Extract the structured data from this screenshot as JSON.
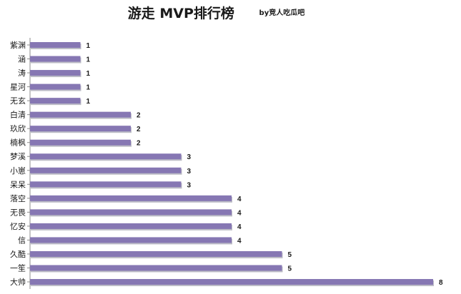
{
  "chart_data": {
    "type": "bar",
    "orientation": "horizontal",
    "title": "游走 MVP排行榜",
    "subtitle": "by竞人吃瓜吧",
    "xlabel": "",
    "ylabel": "",
    "categories": [
      "紫渊",
      "涵",
      "涛",
      "星河",
      "无玄",
      "白清",
      "玖欣",
      "楠枫",
      "梦溪",
      "小崽",
      "呆呆",
      "落空",
      "无畏",
      "忆安",
      "信",
      "久酷",
      "一笙",
      "大帅"
    ],
    "values": [
      1,
      1,
      1,
      1,
      1,
      2,
      2,
      2,
      3,
      3,
      3,
      4,
      4,
      4,
      4,
      5,
      5,
      8
    ],
    "xlim": [
      0,
      8
    ],
    "grid": false,
    "legend": "none",
    "bar_color": "#8677b3",
    "bar_shadow_color": "#bcbcc6"
  }
}
